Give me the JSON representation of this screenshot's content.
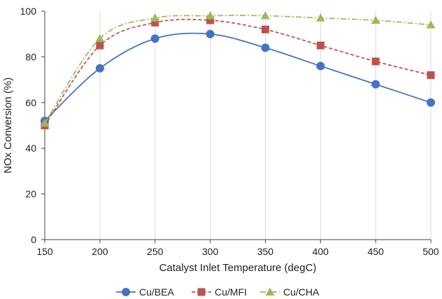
{
  "chart_data": {
    "type": "line",
    "title": "",
    "xlabel": "Catalyst Inlet Temperature (degC)",
    "ylabel": "NOx Conversion (%)",
    "xlim": [
      150,
      500
    ],
    "ylim": [
      0,
      100
    ],
    "x_ticks": [
      150,
      200,
      250,
      300,
      350,
      400,
      450,
      500
    ],
    "y_ticks": [
      0,
      20,
      40,
      60,
      80,
      100
    ],
    "grid": "vertical",
    "legend_position": "bottom",
    "smooth": true,
    "series": [
      {
        "name": "Cu/BEA",
        "color": "#4472C4",
        "marker": "circle",
        "line_style": "solid",
        "x": [
          150,
          200,
          250,
          300,
          350,
          400,
          450,
          500
        ],
        "y": [
          52,
          75,
          88,
          90,
          84,
          76,
          68,
          60
        ]
      },
      {
        "name": "Cu/MFI",
        "color": "#C0504D",
        "marker": "square",
        "line_style": "dashed",
        "x": [
          150,
          200,
          250,
          300,
          350,
          400,
          450,
          500
        ],
        "y": [
          50,
          85,
          95,
          96,
          92,
          85,
          78,
          72
        ]
      },
      {
        "name": "Cu/CHA",
        "color": "#9BBB59",
        "marker": "triangle",
        "line_style": "dashdot",
        "x": [
          150,
          200,
          250,
          300,
          350,
          400,
          450,
          500
        ],
        "y": [
          51,
          88,
          97,
          98,
          98,
          97,
          96,
          94
        ]
      }
    ]
  }
}
